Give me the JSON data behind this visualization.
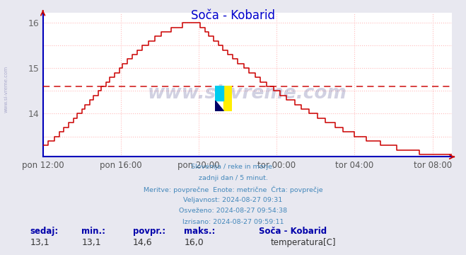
{
  "title": "Soča - Kobarid",
  "title_color": "#0000cc",
  "bg_color": "#e8e8f0",
  "plot_bg_color": "#ffffff",
  "line_color": "#cc0000",
  "grid_color": "#ffbbbb",
  "avg_value": 14.6,
  "ylim_min": 13.05,
  "ylim_max": 16.22,
  "yticks": [
    14,
    15,
    16
  ],
  "ytick_labels": [
    "14",
    "15",
    "16"
  ],
  "x_tick_positions": [
    0,
    48,
    96,
    144,
    192,
    240
  ],
  "x_tick_labels": [
    "pon 12:00",
    "pon 16:00",
    "pon 20:00",
    "tor 00:00",
    "tor 04:00",
    "tor 08:00"
  ],
  "n_points": 253,
  "peak_idx": 96,
  "start_temp": 13.3,
  "peak_temp": 16.0,
  "end_temp": 13.1,
  "info_line1": "Slovenija / reke in morje.",
  "info_line2": "zadnji dan / 5 minut.",
  "info_line3": "Meritve: povprečne  Enote: metrične  Črta: povprečje",
  "info_line4": "Veljavnost: 2024-08-27 09:31",
  "info_line5": "Osveženo: 2024-08-27 09:54:38",
  "info_line6": "Izrisano: 2024-08-27 09:59:11",
  "lbl_sedaj": "sedaj:",
  "lbl_min": "min.:",
  "lbl_povpr": "povpr.:",
  "lbl_maks": "maks.:",
  "lbl_station": "Soča - Kobarid",
  "val_sedaj": "13,1",
  "val_min": "13,1",
  "val_povpr": "14,6",
  "val_maks": "16,0",
  "lbl_series": "temperatura[C]",
  "watermark": "www.si-vreme.com",
  "left_watermark": "www.si-vreme.com",
  "axis_color": "#0000bb",
  "text_color": "#4488bb",
  "footer_label_color": "#0000aa",
  "footer_val_color": "#333333"
}
